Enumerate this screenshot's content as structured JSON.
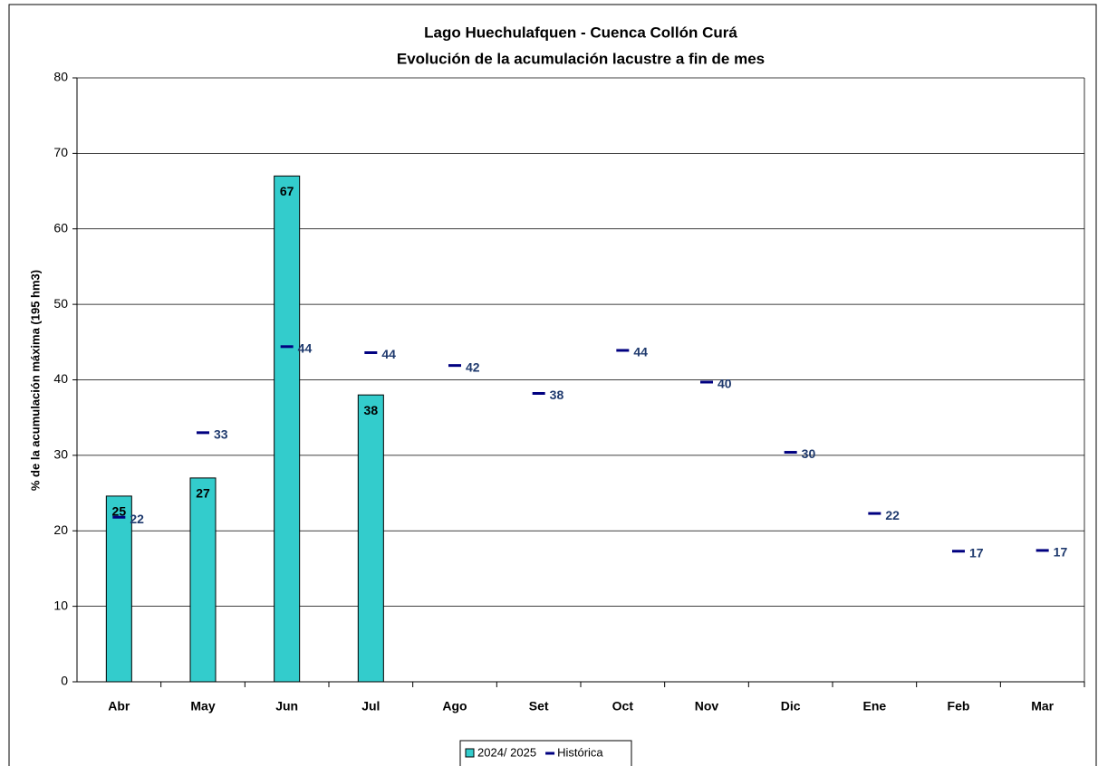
{
  "chart_data": {
    "type": "bar",
    "title": "Lago Huechulafquen - Cuenca Collón Curá",
    "subtitle": "Evolución de la acumulación lacustre a fin de mes",
    "y_label": "% de la acumulación máxima (195 hm3)",
    "categories": [
      "Abr",
      "May",
      "Jun",
      "Jul",
      "Ago",
      "Set",
      "Oct",
      "Nov",
      "Dic",
      "Ene",
      "Feb",
      "Mar"
    ],
    "series": [
      {
        "name": "2024/ 2025",
        "type": "bar",
        "color": "#33cccc",
        "values": [
          24.6,
          27,
          67,
          38,
          null,
          null,
          null,
          null,
          null,
          null,
          null,
          null
        ],
        "value_labels": [
          "25",
          "27",
          "67",
          "38",
          null,
          null,
          null,
          null,
          null,
          null,
          null,
          null
        ]
      },
      {
        "name": "Histórica",
        "type": "marker",
        "color": "#000080",
        "values": [
          21.8,
          33,
          44.4,
          43.6,
          41.9,
          38.2,
          43.9,
          39.7,
          30.4,
          22.3,
          17.3,
          17.4
        ],
        "value_labels": [
          "22",
          "33",
          "44",
          "44",
          "42",
          "38",
          "44",
          "40",
          "30",
          "22",
          "17",
          "17"
        ]
      }
    ],
    "ylim": [
      0,
      80
    ],
    "yticks": [
      0,
      10,
      20,
      30,
      40,
      50,
      60,
      70,
      80
    ],
    "grid": true,
    "legend": "bottom"
  }
}
